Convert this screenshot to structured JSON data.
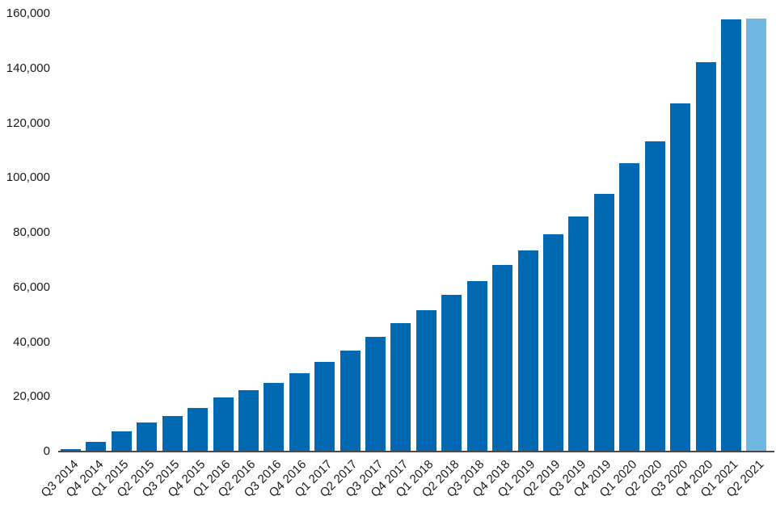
{
  "chart_data": {
    "type": "bar",
    "title": "",
    "xlabel": "",
    "ylabel": "",
    "categories": [
      "Q3 2014",
      "Q4 2014",
      "Q1 2015",
      "Q2 2015",
      "Q3 2015",
      "Q4 2015",
      "Q1 2016",
      "Q2 2016",
      "Q3 2016",
      "Q4 2016",
      "Q1 2017",
      "Q2 2017",
      "Q3 2017",
      "Q4 2017",
      "Q1 2018",
      "Q2 2018",
      "Q3 2018",
      "Q4 2018",
      "Q1 2019",
      "Q2 2019",
      "Q3 2019",
      "Q4 2019",
      "Q1 2020",
      "Q2 2020",
      "Q3 2020",
      "Q4 2020",
      "Q1 2021",
      "Q2 2021"
    ],
    "values": [
      1000,
      3400,
      7400,
      10500,
      13000,
      16000,
      19900,
      22400,
      25200,
      28700,
      32900,
      37000,
      42000,
      46900,
      51700,
      57300,
      62400,
      68300,
      73600,
      79500,
      86000,
      94300,
      105500,
      113400,
      127300,
      142400,
      158000,
      158300
    ],
    "ylim": [
      0,
      160000
    ],
    "y_tick_step": 20000,
    "y_tick_labels": [
      "0",
      "20,000",
      "40,000",
      "60,000",
      "80,000",
      "100,000",
      "120,000",
      "140,000",
      "160,000"
    ],
    "grid": false,
    "legend": false,
    "bar_color": "#0069b1",
    "highlight_color": "#70b7e3",
    "highlight_index": 27,
    "axis_line_color": "#4a4a4a",
    "text_color": "#1a1a1a"
  }
}
